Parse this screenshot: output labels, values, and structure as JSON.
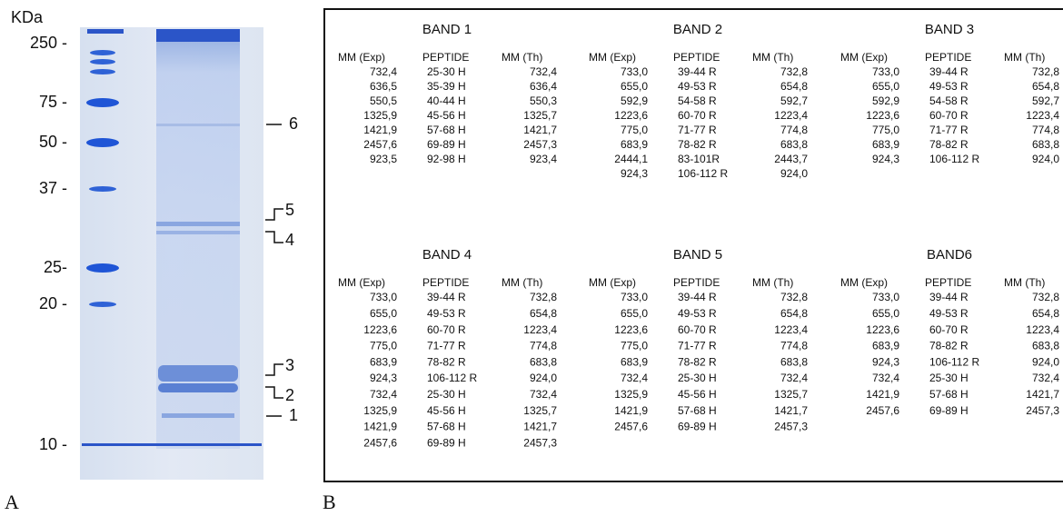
{
  "gel": {
    "unit_label": "KDa",
    "markers": [
      "250 -",
      "75 -",
      "50 -",
      "37 -",
      "25-",
      "20 -",
      "10 -"
    ],
    "band_labels": [
      "6",
      "5",
      "4",
      "3",
      "2",
      "1"
    ]
  },
  "panels": [
    "A",
    "B"
  ],
  "table": {
    "bands": [
      {
        "title": "BAND 1",
        "headers": [
          "MM (Exp)",
          "PEPTIDE",
          "MM (Th)"
        ],
        "rows": [
          [
            "732,4",
            "25-30 H",
            "732,4"
          ],
          [
            "636,5",
            "35-39 H",
            "636,4"
          ],
          [
            "550,5",
            "40-44 H",
            "550,3"
          ],
          [
            "1325,9",
            "45-56 H",
            "1325,7"
          ],
          [
            "1421,9",
            "57-68 H",
            "1421,7"
          ],
          [
            "2457,6",
            "69-89 H",
            "2457,3"
          ],
          [
            "923,5",
            "92-98 H",
            "923,4"
          ]
        ]
      },
      {
        "title": "BAND 2",
        "headers": [
          "MM (Exp)",
          "PEPTIDE",
          "MM (Th)"
        ],
        "rows": [
          [
            "733,0",
            "39-44 R",
            "732,8"
          ],
          [
            "655,0",
            "49-53 R",
            "654,8"
          ],
          [
            "592,9",
            "54-58 R",
            "592,7"
          ],
          [
            "1223,6",
            "60-70 R",
            "1223,4"
          ],
          [
            "775,0",
            "71-77 R",
            "774,8"
          ],
          [
            "683,9",
            "78-82 R",
            "683,8"
          ],
          [
            "2444,1",
            "83-101R",
            "2443,7"
          ],
          [
            "924,3",
            "106-112 R",
            "924,0"
          ]
        ]
      },
      {
        "title": "BAND 3",
        "headers": [
          "MM (Exp)",
          "PEPTIDE",
          "MM (Th)"
        ],
        "rows": [
          [
            "733,0",
            "39-44 R",
            "732,8"
          ],
          [
            "655,0",
            "49-53 R",
            "654,8"
          ],
          [
            "592,9",
            "54-58 R",
            "592,7"
          ],
          [
            "1223,6",
            "60-70 R",
            "1223,4"
          ],
          [
            "775,0",
            "71-77 R",
            "774,8"
          ],
          [
            "683,9",
            "78-82 R",
            "683,8"
          ],
          [
            "924,3",
            "106-112 R",
            "924,0"
          ]
        ]
      },
      {
        "title": "BAND 4",
        "headers": [
          "MM (Exp)",
          "PEPTIDE",
          "MM (Th)"
        ],
        "rows": [
          [
            "733,0",
            "39-44 R",
            "732,8"
          ],
          [
            "655,0",
            "49-53 R",
            "654,8"
          ],
          [
            "1223,6",
            "60-70 R",
            "1223,4"
          ],
          [
            "775,0",
            "71-77 R",
            "774,8"
          ],
          [
            "683,9",
            "78-82 R",
            "683,8"
          ],
          [
            "924,3",
            "106-112 R",
            "924,0"
          ],
          [
            "732,4",
            "25-30 H",
            "732,4"
          ],
          [
            "1325,9",
            "45-56 H",
            "1325,7"
          ],
          [
            "1421,9",
            "57-68 H",
            "1421,7"
          ],
          [
            "2457,6",
            "69-89 H",
            "2457,3"
          ]
        ]
      },
      {
        "title": "BAND 5",
        "headers": [
          "MM (Exp)",
          "PEPTIDE",
          "MM (Th)"
        ],
        "rows": [
          [
            "733,0",
            "39-44 R",
            "732,8"
          ],
          [
            "655,0",
            "49-53 R",
            "654,8"
          ],
          [
            "1223,6",
            "60-70 R",
            "1223,4"
          ],
          [
            "775,0",
            "71-77 R",
            "774,8"
          ],
          [
            "683,9",
            "78-82 R",
            "683,8"
          ],
          [
            "732,4",
            "25-30 H",
            "732,4"
          ],
          [
            "1325,9",
            "45-56 H",
            "1325,7"
          ],
          [
            "1421,9",
            "57-68 H",
            "1421,7"
          ],
          [
            "2457,6",
            "69-89 H",
            "2457,3"
          ]
        ]
      },
      {
        "title": "BAND6",
        "headers": [
          "MM (Exp)",
          "PEPTIDE",
          "MM (Th)"
        ],
        "rows": [
          [
            "733,0",
            "39-44 R",
            "732,8"
          ],
          [
            "655,0",
            "49-53 R",
            "654,8"
          ],
          [
            "1223,6",
            "60-70 R",
            "1223,4"
          ],
          [
            "683,9",
            "78-82 R",
            "683,8"
          ],
          [
            "924,3",
            "106-112 R",
            "924,0"
          ],
          [
            "732,4",
            "25-30 H",
            "732,4"
          ],
          [
            "1421,9",
            "57-68 H",
            "1421,7"
          ],
          [
            "2457,6",
            "69-89 H",
            "2457,3"
          ]
        ]
      }
    ]
  }
}
